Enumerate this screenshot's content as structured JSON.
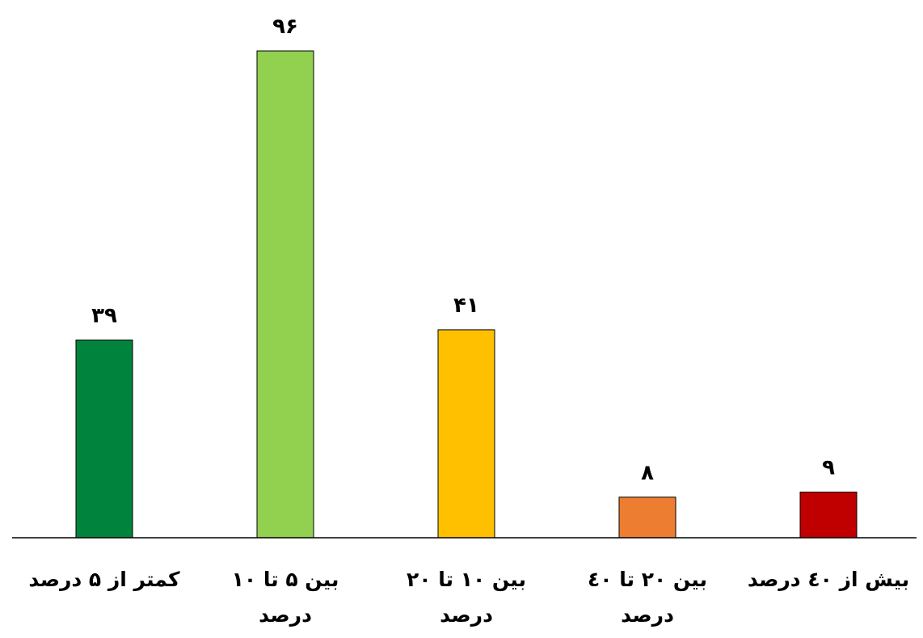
{
  "chart_data": {
    "type": "bar",
    "title": "",
    "xlabel": "",
    "ylabel": "",
    "ylim": [
      0,
      100
    ],
    "grid": false,
    "legend": "none",
    "categories": [
      [
        "کمتر از ۵ درصد"
      ],
      [
        "بین ۵ تا ۱۰",
        "درصد"
      ],
      [
        "بین ۱۰ تا ۲۰",
        "درصد"
      ],
      [
        "بین ۲۰ تا ٤۰",
        "درصد"
      ],
      [
        "بیش از ٤۰ درصد"
      ]
    ],
    "values": [
      39,
      96,
      41,
      8,
      9
    ],
    "value_labels": [
      "۳۹",
      "۹۶",
      "۴۱",
      "۸",
      "۹"
    ],
    "colors": [
      "#00843D",
      "#92D050",
      "#FFC000",
      "#ED7D31",
      "#C00000"
    ]
  }
}
